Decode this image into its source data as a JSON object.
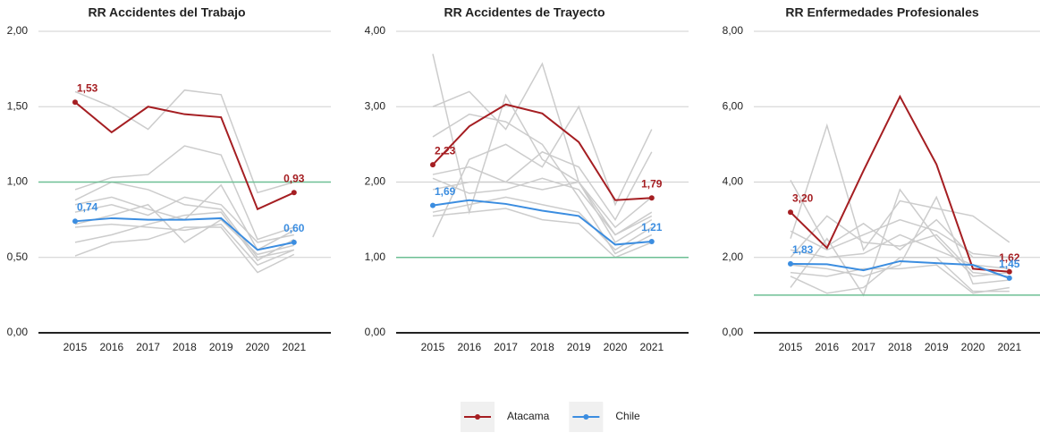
{
  "chart_data": [
    {
      "type": "line",
      "title": "RR Accidentes del Trabajo",
      "categories": [
        "2015",
        "2016",
        "2017",
        "2018",
        "2019",
        "2020",
        "2021"
      ],
      "ylim": [
        0,
        2
      ],
      "yticks": [
        {
          "value": 0,
          "label": "0,00"
        },
        {
          "value": 0.5,
          "label": "0,50"
        },
        {
          "value": 1,
          "label": "1,00"
        },
        {
          "value": 1.5,
          "label": "1,50"
        },
        {
          "value": 2,
          "label": "2,00"
        }
      ],
      "grid": true,
      "reference_line": 1,
      "reference_color": "#6dbf94",
      "series": [
        {
          "color": "#cccccc",
          "values": [
            0.95,
            1.03,
            1.05,
            1.24,
            1.18,
            0.62,
            0.7
          ]
        },
        {
          "color": "#cccccc",
          "values": [
            0.88,
            1.0,
            0.95,
            0.85,
            0.82,
            0.5,
            0.55
          ]
        },
        {
          "color": "#cccccc",
          "values": [
            0.8,
            0.85,
            0.78,
            0.9,
            0.85,
            0.6,
            0.65
          ]
        },
        {
          "color": "#cccccc",
          "values": [
            0.7,
            0.72,
            0.7,
            0.68,
            0.72,
            0.45,
            0.55
          ]
        },
        {
          "color": "#cccccc",
          "values": [
            0.6,
            0.65,
            0.72,
            0.78,
            0.8,
            0.48,
            0.62
          ]
        },
        {
          "color": "#cccccc",
          "values": [
            0.51,
            0.6,
            0.62,
            0.7,
            0.7,
            0.4,
            0.52
          ]
        },
        {
          "color": "#cccccc",
          "values": [
            1.6,
            1.5,
            1.35,
            1.61,
            1.58,
            0.93,
            1.0
          ]
        },
        {
          "color": "#cccccc",
          "values": [
            0.85,
            0.9,
            0.82,
            0.75,
            0.98,
            0.55,
            0.68
          ]
        },
        {
          "color": "#cccccc",
          "values": [
            0.72,
            0.78,
            0.85,
            0.6,
            0.75,
            0.52,
            0.58
          ]
        },
        {
          "name": "Atacama",
          "color": "#a51e22",
          "values": [
            1.53,
            1.33,
            1.5,
            1.45,
            1.43,
            0.82,
            0.93
          ],
          "value_labels": [
            "1,53",
            null,
            null,
            null,
            null,
            null,
            "0,93"
          ]
        },
        {
          "name": "Chile",
          "color": "#3b8de0",
          "values": [
            0.74,
            0.76,
            0.75,
            0.75,
            0.76,
            0.55,
            0.6
          ],
          "value_labels": [
            "0,74",
            null,
            null,
            null,
            null,
            null,
            "0,60"
          ]
        }
      ]
    },
    {
      "type": "line",
      "title": "RR Accidentes de Trayecto",
      "categories": [
        "2015",
        "2016",
        "2017",
        "2018",
        "2019",
        "2020",
        "2021"
      ],
      "ylim": [
        0,
        4
      ],
      "yticks": [
        {
          "value": 0,
          "label": "0,00"
        },
        {
          "value": 1,
          "label": "1,00"
        },
        {
          "value": 2,
          "label": "2,00"
        },
        {
          "value": 3,
          "label": "3,00"
        },
        {
          "value": 4,
          "label": "4,00"
        }
      ],
      "grid": true,
      "reference_line": 1,
      "reference_color": "#6dbf94",
      "series": [
        {
          "color": "#cccccc",
          "values": [
            3.7,
            1.6,
            3.15,
            2.3,
            2.0,
            1.3,
            1.6
          ]
        },
        {
          "color": "#cccccc",
          "values": [
            3.0,
            3.2,
            2.7,
            3.57,
            2.0,
            1.2,
            1.5
          ]
        },
        {
          "color": "#cccccc",
          "values": [
            1.27,
            2.3,
            2.5,
            2.2,
            3.0,
            1.7,
            2.7
          ]
        },
        {
          "color": "#cccccc",
          "values": [
            2.1,
            2.2,
            2.0,
            2.4,
            2.2,
            1.5,
            2.4
          ]
        },
        {
          "color": "#cccccc",
          "values": [
            1.9,
            2.0,
            2.0,
            1.9,
            2.0,
            1.4,
            1.8
          ]
        },
        {
          "color": "#cccccc",
          "values": [
            1.6,
            1.7,
            1.8,
            1.7,
            1.6,
            1.1,
            1.4
          ]
        },
        {
          "color": "#cccccc",
          "values": [
            1.55,
            1.6,
            1.65,
            1.5,
            1.45,
            1.0,
            1.2
          ]
        },
        {
          "color": "#cccccc",
          "values": [
            2.6,
            2.9,
            2.8,
            2.5,
            1.8,
            1.05,
            1.3
          ]
        },
        {
          "color": "#cccccc",
          "values": [
            2.05,
            1.85,
            1.9,
            2.05,
            1.9,
            1.3,
            1.55
          ]
        },
        {
          "name": "Atacama",
          "color": "#a51e22",
          "values": [
            2.23,
            2.74,
            3.03,
            2.91,
            2.53,
            1.76,
            1.79
          ],
          "value_labels": [
            "2,23",
            null,
            null,
            null,
            null,
            null,
            "1,79"
          ]
        },
        {
          "name": "Chile",
          "color": "#3b8de0",
          "values": [
            1.69,
            1.76,
            1.71,
            1.62,
            1.55,
            1.17,
            1.21
          ],
          "value_labels": [
            "1,69",
            null,
            null,
            null,
            null,
            null,
            "1,21"
          ]
        }
      ]
    },
    {
      "type": "line",
      "title": "RR Enfermedades Profesionales",
      "categories": [
        "2015",
        "2016",
        "2017",
        "2018",
        "2019",
        "2020",
        "2021"
      ],
      "ylim": [
        0,
        8
      ],
      "yticks": [
        {
          "value": 0,
          "label": "0,00"
        },
        {
          "value": 2,
          "label": "2,00"
        },
        {
          "value": 4,
          "label": "4,00"
        },
        {
          "value": 6,
          "label": "6,00"
        },
        {
          "value": 8,
          "label": "8,00"
        }
      ],
      "grid": true,
      "reference_line": 1,
      "reference_color": "#6dbf94",
      "series": [
        {
          "color": "#cccccc",
          "values": [
            4.05,
            2.3,
            2.9,
            2.2,
            3.0,
            2.0,
            2.0
          ]
        },
        {
          "color": "#cccccc",
          "values": [
            2.5,
            5.5,
            2.2,
            3.5,
            3.3,
            3.1,
            2.4
          ]
        },
        {
          "color": "#cccccc",
          "values": [
            1.2,
            2.5,
            1.0,
            3.8,
            2.5,
            1.5,
            1.6
          ]
        },
        {
          "color": "#cccccc",
          "values": [
            2.7,
            2.2,
            2.6,
            3.0,
            2.7,
            2.1,
            2.0
          ]
        },
        {
          "color": "#cccccc",
          "values": [
            2.2,
            2.0,
            2.1,
            2.6,
            2.2,
            1.8,
            1.7
          ]
        },
        {
          "color": "#cccccc",
          "values": [
            1.5,
            1.05,
            1.2,
            2.0,
            2.0,
            1.1,
            1.1
          ]
        },
        {
          "color": "#cccccc",
          "values": [
            1.8,
            1.7,
            1.5,
            1.8,
            3.6,
            1.3,
            1.4
          ]
        },
        {
          "color": "#cccccc",
          "values": [
            2.0,
            3.1,
            2.4,
            2.3,
            2.6,
            1.6,
            1.5
          ]
        },
        {
          "color": "#cccccc",
          "values": [
            1.6,
            1.5,
            1.7,
            1.7,
            1.8,
            1.05,
            1.2
          ]
        },
        {
          "name": "Atacama",
          "color": "#a51e22",
          "values": [
            3.2,
            2.25,
            4.3,
            6.27,
            4.47,
            1.7,
            1.62
          ],
          "value_labels": [
            "3,20",
            null,
            null,
            null,
            null,
            null,
            "1,62"
          ]
        },
        {
          "name": "Chile",
          "color": "#3b8de0",
          "values": [
            1.83,
            1.82,
            1.66,
            1.9,
            1.85,
            1.8,
            1.45
          ],
          "value_labels": [
            "1,83",
            null,
            null,
            null,
            null,
            null,
            "1,45"
          ]
        }
      ]
    }
  ]
}
